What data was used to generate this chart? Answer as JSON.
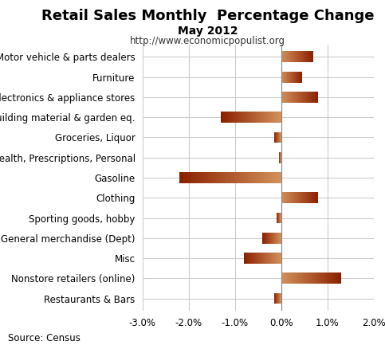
{
  "title": "Retail Sales Monthly  Percentage Change",
  "subtitle": "May 2012",
  "url": "http://www.economicpopulist.org",
  "source": "Source: Census",
  "categories": [
    "Motor vehicle & parts dealers",
    "Furniture",
    "Electronics & appliance stores",
    "Building material & garden eq.",
    "Groceries, Liquor",
    "Health, Prescriptions, Personal",
    "Gasoline",
    "Clothing",
    "Sporting goods, hobby",
    "General merchandise (Dept)",
    "Misc",
    "Nonstore retailers (online)",
    "Restaurants & Bars"
  ],
  "values": [
    0.7,
    0.45,
    0.8,
    -1.3,
    -0.15,
    -0.05,
    -2.2,
    0.8,
    -0.1,
    -0.4,
    -0.8,
    1.3,
    -0.15
  ],
  "xlim": [
    -3.0,
    2.0
  ],
  "xticks": [
    -3.0,
    -2.0,
    -1.0,
    0.0,
    1.0,
    2.0
  ],
  "bar_height": 0.55,
  "bg_color": "#ffffff",
  "grid_color": "#cccccc",
  "positive_color_left": "#d2905a",
  "positive_color_right": "#8b2000",
  "negative_color_left": "#8b2000",
  "negative_color_right": "#d2905a",
  "title_fontsize": 13,
  "subtitle_fontsize": 10,
  "url_fontsize": 8.5,
  "label_fontsize": 8.5,
  "tick_fontsize": 8.5,
  "source_fontsize": 8.5
}
